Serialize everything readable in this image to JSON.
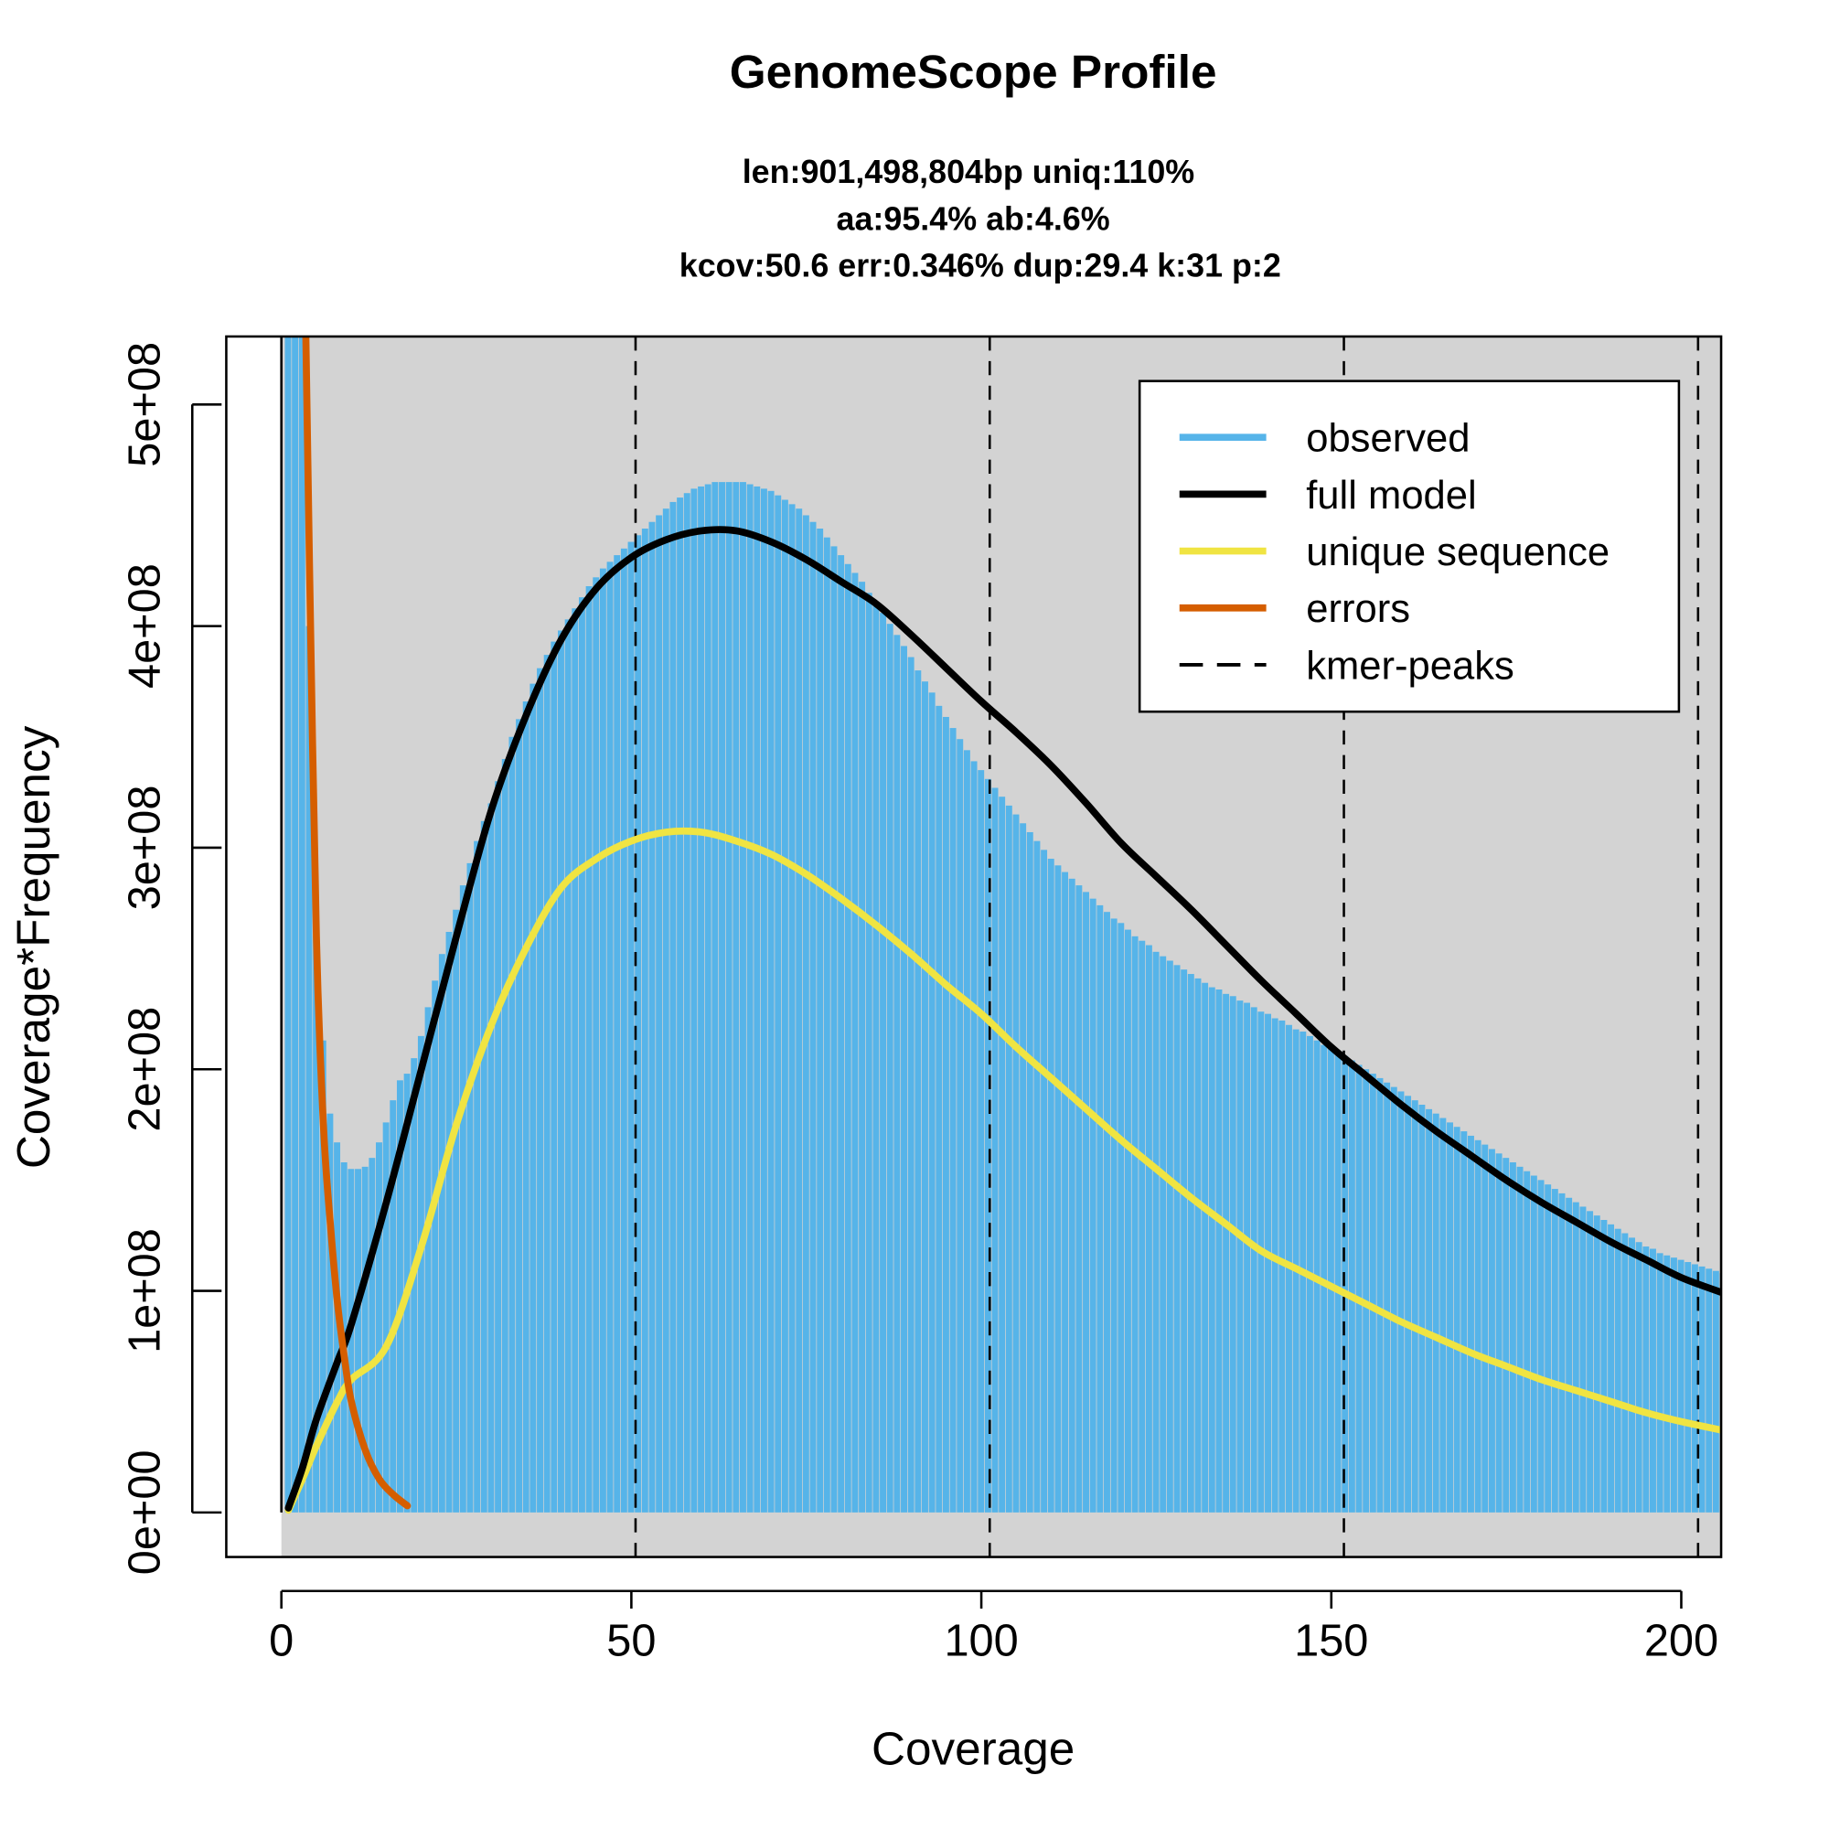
{
  "chart_data": {
    "type": "bar",
    "title": "GenomeScope Profile",
    "subtitle_lines": [
      "len:901,498,804bp uniq:110%",
      "aa:95.4% ab:4.6%",
      "kcov:50.6 err:0.346%  dup:29.4  k:31 p:2"
    ],
    "xlabel": "Coverage",
    "ylabel": "Coverage*Frequency",
    "xlim": [
      -8,
      206
    ],
    "ylim": [
      -30000000.0,
      530000000.0
    ],
    "xticks": [
      0,
      50,
      100,
      150,
      200
    ],
    "xtick_labels": [
      "0",
      "50",
      "100",
      "150",
      "200"
    ],
    "yticks": [
      0,
      100000000.0,
      200000000.0,
      300000000.0,
      400000000.0,
      500000000.0
    ],
    "ytick_labels": [
      "0e+00",
      "1e+08",
      "2e+08",
      "3e+08",
      "4e+08",
      "5e+08"
    ],
    "y_unit": 100000000.0,
    "observed": {
      "name": "observed",
      "color": "#56B4E9",
      "x_start": 1,
      "values": [
        9,
        8,
        6,
        4,
        2.6,
        2.13,
        1.8,
        1.67,
        1.58,
        1.55,
        1.55,
        1.56,
        1.6,
        1.67,
        1.76,
        1.86,
        1.95,
        1.98,
        2.05,
        2.15,
        2.28,
        2.4,
        2.52,
        2.62,
        2.72,
        2.83,
        2.93,
        3.03,
        3.12,
        3.2,
        3.3,
        3.4,
        3.5,
        3.58,
        3.66,
        3.74,
        3.81,
        3.87,
        3.93,
        3.98,
        4.03,
        4.08,
        4.13,
        4.18,
        4.22,
        4.26,
        4.29,
        4.32,
        4.35,
        4.38,
        4.41,
        4.44,
        4.47,
        4.5,
        4.53,
        4.56,
        4.58,
        4.6,
        4.62,
        4.63,
        4.64,
        4.65,
        4.65,
        4.65,
        4.65,
        4.65,
        4.64,
        4.63,
        4.62,
        4.61,
        4.59,
        4.57,
        4.55,
        4.53,
        4.5,
        4.47,
        4.44,
        4.4,
        4.36,
        4.32,
        4.28,
        4.24,
        4.2,
        4.15,
        4.11,
        4.06,
        4.01,
        3.96,
        3.91,
        3.86,
        3.8,
        3.75,
        3.7,
        3.64,
        3.59,
        3.54,
        3.49,
        3.44,
        3.39,
        3.35,
        3.31,
        3.27,
        3.23,
        3.19,
        3.15,
        3.11,
        3.07,
        3.03,
        2.99,
        2.95,
        2.92,
        2.89,
        2.86,
        2.83,
        2.8,
        2.77,
        2.74,
        2.71,
        2.68,
        2.66,
        2.63,
        2.6,
        2.58,
        2.56,
        2.53,
        2.51,
        2.49,
        2.47,
        2.45,
        2.43,
        2.41,
        2.39,
        2.37,
        2.36,
        2.34,
        2.33,
        2.31,
        2.3,
        2.28,
        2.26,
        2.25,
        2.23,
        2.22,
        2.2,
        2.18,
        2.17,
        2.15,
        2.13,
        2.11,
        2.1,
        2.08,
        2.06,
        2.04,
        2.02,
        2.0,
        1.98,
        1.96,
        1.94,
        1.92,
        1.9,
        1.88,
        1.86,
        1.84,
        1.82,
        1.8,
        1.78,
        1.76,
        1.74,
        1.72,
        1.7,
        1.68,
        1.66,
        1.64,
        1.62,
        1.6,
        1.58,
        1.56,
        1.54,
        1.52,
        1.5,
        1.48,
        1.46,
        1.44,
        1.42,
        1.4,
        1.38,
        1.36,
        1.34,
        1.32,
        1.3,
        1.28,
        1.26,
        1.24,
        1.22,
        1.2,
        1.19,
        1.17,
        1.16,
        1.15,
        1.14,
        1.13,
        1.12,
        1.11,
        1.1,
        1.09,
        1.08
      ]
    },
    "series": [
      {
        "name": "full model",
        "color": "#000000",
        "points": [
          [
            1,
            0.02
          ],
          [
            3,
            0.2
          ],
          [
            5,
            0.42
          ],
          [
            8,
            0.68
          ],
          [
            10,
            0.85
          ],
          [
            15,
            1.4
          ],
          [
            20,
            2.0
          ],
          [
            25,
            2.6
          ],
          [
            30,
            3.17
          ],
          [
            35,
            3.6
          ],
          [
            40,
            3.94
          ],
          [
            45,
            4.17
          ],
          [
            50,
            4.31
          ],
          [
            55,
            4.39
          ],
          [
            60,
            4.43
          ],
          [
            65,
            4.43
          ],
          [
            70,
            4.38
          ],
          [
            75,
            4.3
          ],
          [
            80,
            4.2
          ],
          [
            85,
            4.1
          ],
          [
            90,
            3.96
          ],
          [
            95,
            3.81
          ],
          [
            100,
            3.66
          ],
          [
            105,
            3.52
          ],
          [
            110,
            3.37
          ],
          [
            115,
            3.2
          ],
          [
            120,
            3.02
          ],
          [
            125,
            2.87
          ],
          [
            130,
            2.72
          ],
          [
            135,
            2.56
          ],
          [
            140,
            2.4
          ],
          [
            145,
            2.25
          ],
          [
            150,
            2.1
          ],
          [
            155,
            1.97
          ],
          [
            160,
            1.84
          ],
          [
            165,
            1.72
          ],
          [
            170,
            1.61
          ],
          [
            175,
            1.5
          ],
          [
            180,
            1.4
          ],
          [
            185,
            1.31
          ],
          [
            190,
            1.22
          ],
          [
            195,
            1.14
          ],
          [
            200,
            1.06
          ],
          [
            206,
            0.99
          ]
        ]
      },
      {
        "name": "unique sequence",
        "color": "#F0E442",
        "points": [
          [
            1,
            0.01
          ],
          [
            3,
            0.15
          ],
          [
            5,
            0.3
          ],
          [
            8,
            0.5
          ],
          [
            10,
            0.6
          ],
          [
            15,
            0.75
          ],
          [
            20,
            1.2
          ],
          [
            25,
            1.75
          ],
          [
            30,
            2.2
          ],
          [
            35,
            2.55
          ],
          [
            40,
            2.82
          ],
          [
            45,
            2.95
          ],
          [
            50,
            3.03
          ],
          [
            55,
            3.07
          ],
          [
            60,
            3.07
          ],
          [
            65,
            3.03
          ],
          [
            70,
            2.97
          ],
          [
            75,
            2.88
          ],
          [
            80,
            2.77
          ],
          [
            85,
            2.65
          ],
          [
            90,
            2.52
          ],
          [
            95,
            2.38
          ],
          [
            100,
            2.25
          ],
          [
            105,
            2.1
          ],
          [
            110,
            1.96
          ],
          [
            115,
            1.82
          ],
          [
            120,
            1.68
          ],
          [
            125,
            1.55
          ],
          [
            130,
            1.42
          ],
          [
            135,
            1.3
          ],
          [
            140,
            1.18
          ],
          [
            145,
            1.1
          ],
          [
            150,
            1.02
          ],
          [
            155,
            0.94
          ],
          [
            160,
            0.86
          ],
          [
            165,
            0.79
          ],
          [
            170,
            0.72
          ],
          [
            175,
            0.66
          ],
          [
            180,
            0.6
          ],
          [
            185,
            0.55
          ],
          [
            190,
            0.5
          ],
          [
            195,
            0.45
          ],
          [
            200,
            0.41
          ],
          [
            206,
            0.37
          ]
        ]
      },
      {
        "name": "errors",
        "color": "#D55E00",
        "points": [
          [
            3.5,
            5.3
          ],
          [
            4,
            4.3
          ],
          [
            5,
            2.6
          ],
          [
            6,
            1.75
          ],
          [
            7,
            1.3
          ],
          [
            8,
            0.95
          ],
          [
            9,
            0.7
          ],
          [
            10,
            0.5
          ],
          [
            12,
            0.28
          ],
          [
            14,
            0.15
          ],
          [
            16,
            0.08
          ],
          [
            18,
            0.03
          ]
        ]
      }
    ],
    "kmer_peaks": {
      "name": "kmer-peaks",
      "x": [
        50.6,
        101.2,
        151.8,
        202.4
      ]
    },
    "legend": {
      "placement": "top-right",
      "entries": [
        "observed",
        "full model",
        "unique sequence",
        "errors",
        "kmer-peaks"
      ]
    },
    "background": "#D3D3D3"
  }
}
